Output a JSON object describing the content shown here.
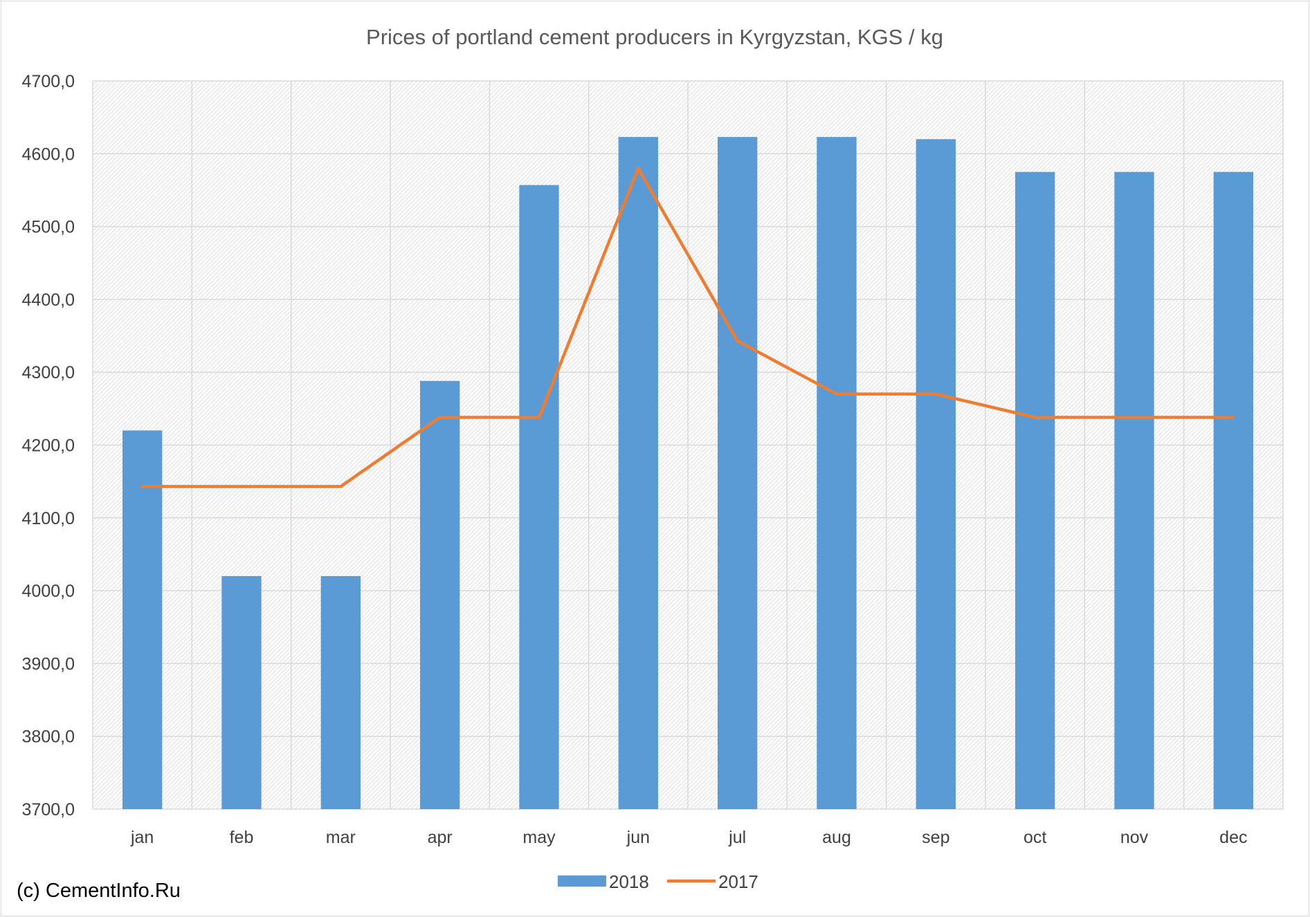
{
  "chart_data": {
    "type": "bar",
    "title": "Prices of portland cement producers in Kyrgyzstan, KGS / kg",
    "categories": [
      "jan",
      "feb",
      "mar",
      "apr",
      "may",
      "jun",
      "jul",
      "aug",
      "sep",
      "oct",
      "nov",
      "dec"
    ],
    "series": [
      {
        "name": "2018",
        "type": "bar",
        "color": "#5b9bd5",
        "values": [
          4220,
          4020,
          4020,
          4288,
          4557,
          4623,
          4623,
          4623,
          4620,
          4575,
          4575,
          4575
        ]
      },
      {
        "name": "2017",
        "type": "line",
        "color": "#ed7d31",
        "values": [
          4143,
          4143,
          4143,
          4238,
          4238,
          4580,
          4343,
          4270,
          4270,
          4238,
          4238,
          4238
        ]
      }
    ],
    "ylim": [
      3700,
      4700
    ],
    "yticks": [
      "3700,0",
      "3800,0",
      "3900,0",
      "4000,0",
      "4100,0",
      "4200,0",
      "4300,0",
      "4400,0",
      "4500,0",
      "4600,0",
      "4700,0"
    ],
    "grid": true,
    "legend_position": "bottom"
  },
  "copyright": "(c) CementInfo.Ru"
}
